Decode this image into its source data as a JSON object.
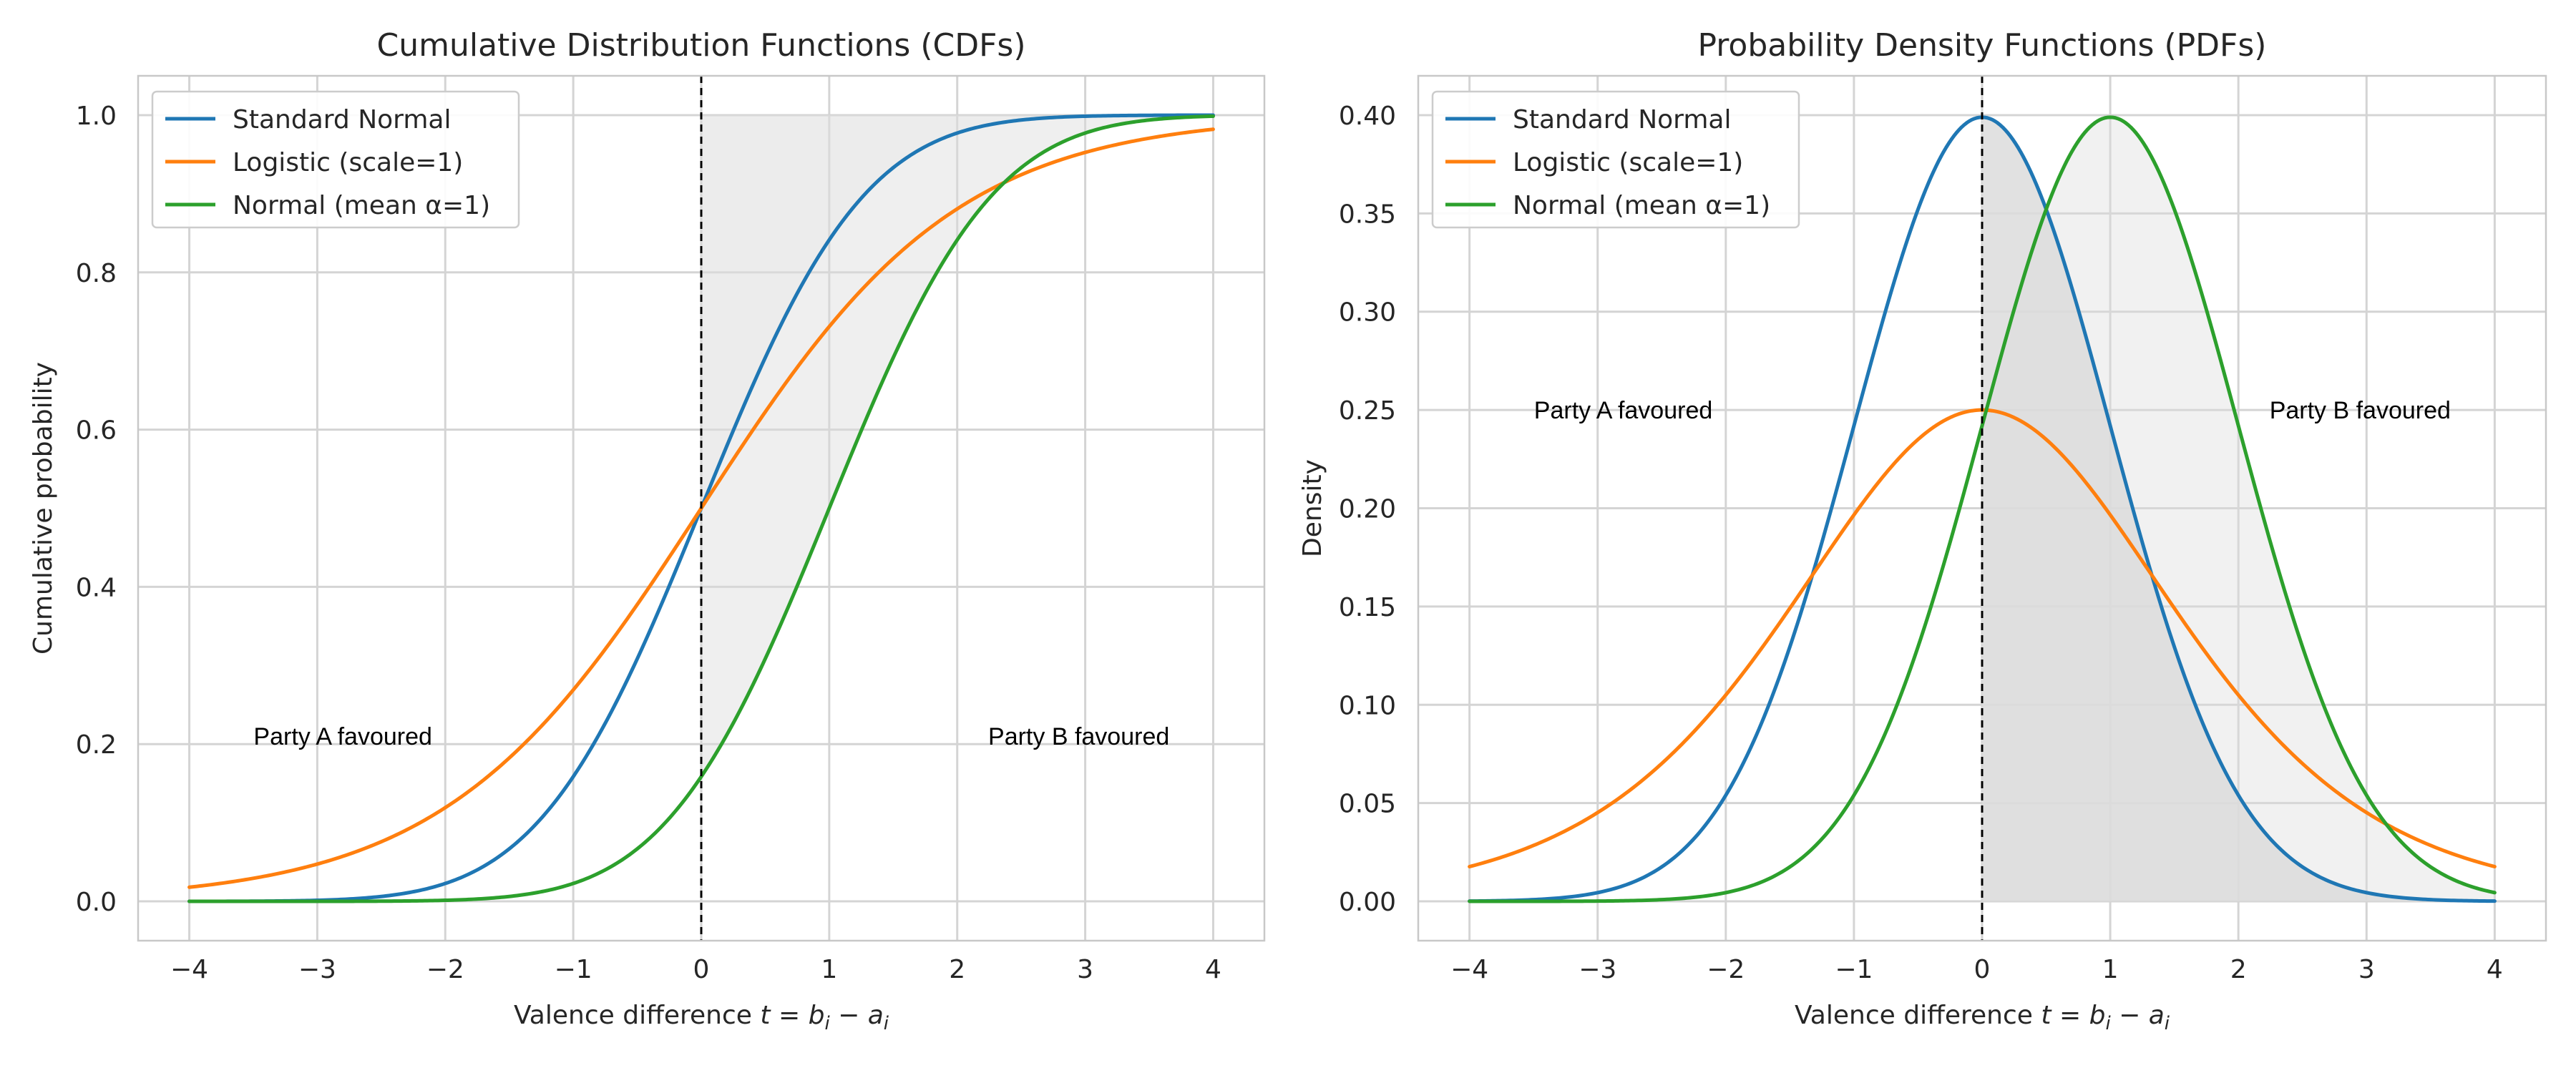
{
  "chart_data": [
    {
      "type": "line",
      "title": "Cumulative Distribution Functions (CDFs)",
      "xlabel": "Valence difference t = b_i − a_i",
      "xlabel_parts": [
        "Valence difference ",
        "t",
        " = ",
        "b",
        "i",
        " − ",
        "a",
        "i"
      ],
      "ylabel": "Cumulative probability",
      "xlim": [
        -4.4,
        4.4
      ],
      "ylim": [
        -0.05,
        1.05
      ],
      "x_ticks": [
        -4,
        -3,
        -2,
        -1,
        0,
        1,
        2,
        3,
        4
      ],
      "x_tick_labels": [
        "−4",
        "−3",
        "−2",
        "−1",
        "0",
        "1",
        "2",
        "3",
        "4"
      ],
      "y_ticks": [
        0.0,
        0.2,
        0.4,
        0.6,
        0.8,
        1.0
      ],
      "y_tick_labels": [
        "0.0",
        "0.2",
        "0.4",
        "0.6",
        "0.8",
        "1.0"
      ],
      "grid": true,
      "legend_position": "top-left",
      "vertical_line_x": 0,
      "x_range": [
        -4,
        4
      ],
      "series": [
        {
          "name": "Standard Normal",
          "distribution": "normal",
          "mean": 0,
          "scale": 1,
          "function": "cdf",
          "color": "#1f77b4"
        },
        {
          "name": "Logistic (scale=1)",
          "distribution": "logistic",
          "mean": 0,
          "scale": 1,
          "function": "cdf",
          "color": "#ff7f0e"
        },
        {
          "name": "Normal (mean α=1)",
          "distribution": "normal",
          "mean": 1,
          "scale": 1,
          "function": "cdf",
          "color": "#2ca02c"
        }
      ],
      "shaded_regions": [
        {
          "between": [
            "Standard Normal",
            1.0
          ],
          "x_from": 0,
          "x_to": 4,
          "color": "#dcdcdc",
          "opacity": 0.55
        },
        {
          "between": [
            "Normal (mean α=1)",
            "Standard Normal"
          ],
          "x_from": 0,
          "x_to": 4,
          "color": "#dcdcdc",
          "opacity": 0.45
        }
      ],
      "annotations": [
        {
          "text": "Party A favoured",
          "x": -2.8,
          "y": 0.21
        },
        {
          "text": "Party B favoured",
          "x": 2.95,
          "y": 0.21
        }
      ]
    },
    {
      "type": "line",
      "title": "Probability Density Functions (PDFs)",
      "xlabel": "Valence difference t = b_i − a_i",
      "xlabel_parts": [
        "Valence difference ",
        "t",
        " = ",
        "b",
        "i",
        " − ",
        "a",
        "i"
      ],
      "ylabel": "Density",
      "xlim": [
        -4.4,
        4.4
      ],
      "ylim": [
        -0.02,
        0.42
      ],
      "x_ticks": [
        -4,
        -3,
        -2,
        -1,
        0,
        1,
        2,
        3,
        4
      ],
      "x_tick_labels": [
        "−4",
        "−3",
        "−2",
        "−1",
        "0",
        "1",
        "2",
        "3",
        "4"
      ],
      "y_ticks": [
        0.0,
        0.05,
        0.1,
        0.15,
        0.2,
        0.25,
        0.3,
        0.35,
        0.4
      ],
      "y_tick_labels": [
        "0.00",
        "0.05",
        "0.10",
        "0.15",
        "0.20",
        "0.25",
        "0.30",
        "0.35",
        "0.40"
      ],
      "grid": true,
      "legend_position": "top-left",
      "vertical_line_x": 0,
      "x_range": [
        -4,
        4
      ],
      "series": [
        {
          "name": "Standard Normal",
          "distribution": "normal",
          "mean": 0,
          "scale": 1,
          "function": "pdf",
          "color": "#1f77b4"
        },
        {
          "name": "Logistic (scale=1)",
          "distribution": "logistic",
          "mean": 0,
          "scale": 1,
          "function": "pdf",
          "color": "#ff7f0e"
        },
        {
          "name": "Normal (mean α=1)",
          "distribution": "normal",
          "mean": 1,
          "scale": 1,
          "function": "pdf",
          "color": "#2ca02c"
        }
      ],
      "shaded_regions": [
        {
          "between": [
            0,
            "Standard Normal"
          ],
          "x_from": 0,
          "x_to": 4,
          "color": "#dcdcdc",
          "opacity": 0.85
        },
        {
          "between": [
            0,
            "Normal (mean α=1)"
          ],
          "x_from": 0,
          "x_to": 4,
          "color": "#dcdcdc",
          "opacity": 0.4
        }
      ],
      "annotations": [
        {
          "text": "Party A favoured",
          "x": -2.8,
          "y": 0.25
        },
        {
          "text": "Party B favoured",
          "x": 2.95,
          "y": 0.25
        }
      ]
    }
  ]
}
